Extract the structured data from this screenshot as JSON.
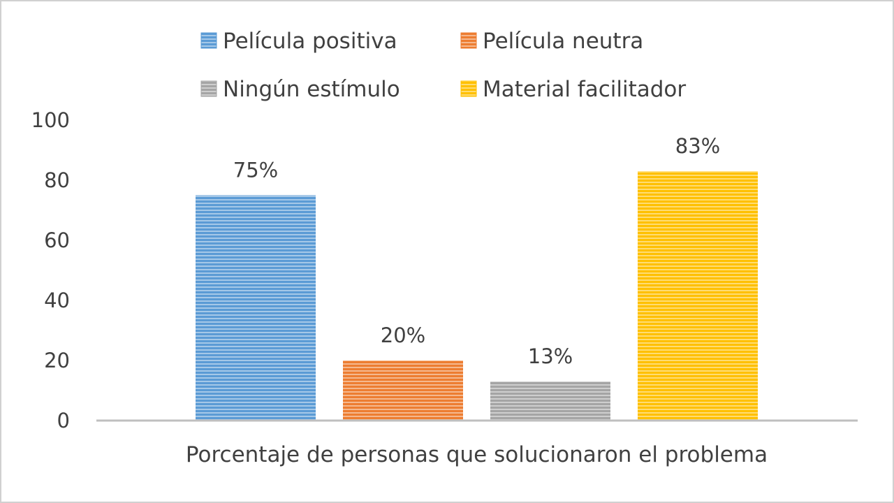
{
  "chart_data": {
    "type": "bar",
    "categories": [
      "Porcentaje de personas que solucionaron el problema"
    ],
    "series": [
      {
        "name": "Película positiva",
        "values": [
          75
        ],
        "label": "75%",
        "color": "#5b9bd5"
      },
      {
        "name": "Película neutra",
        "values": [
          20
        ],
        "label": "20%",
        "color": "#ed7d31"
      },
      {
        "name": "Ningún estímulo",
        "values": [
          13
        ],
        "label": "13%",
        "color": "#a5a5a5"
      },
      {
        "name": "Material facilitador",
        "values": [
          83
        ],
        "label": "83%",
        "color": "#ffc000"
      }
    ],
    "ylim": [
      0,
      100
    ],
    "yticks": [
      "0",
      "20",
      "40",
      "60",
      "80",
      "100"
    ],
    "bar_pattern": "horizontal-stripes",
    "grid": false,
    "legend_position": "top"
  }
}
